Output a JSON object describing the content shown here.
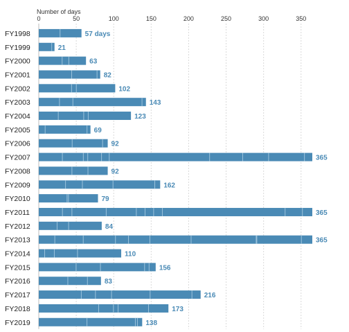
{
  "chart_data": {
    "type": "bar",
    "orientation": "horizontal",
    "xlabel": "Number of days",
    "xlim": [
      0,
      365
    ],
    "xticks": [
      0,
      50,
      100,
      150,
      200,
      250,
      300,
      350
    ],
    "grid": true,
    "categories": [
      "FY1998",
      "FY1999",
      "FY2000",
      "FY2001",
      "FY2002",
      "FY2003",
      "FY2004",
      "FY2005",
      "FY2006",
      "FY2007",
      "FY2008",
      "FY2009",
      "FY2010",
      "FY2011",
      "FY2012",
      "FY2013",
      "FY2014",
      "FY2015",
      "FY2016",
      "FY2017",
      "FY2018",
      "FY2019"
    ],
    "values": [
      57,
      21,
      63,
      82,
      102,
      143,
      123,
      69,
      92,
      365,
      92,
      162,
      79,
      365,
      84,
      365,
      110,
      156,
      83,
      216,
      173,
      138
    ],
    "value_labels": [
      "57 days",
      "21",
      "63",
      "82",
      "102",
      "143",
      "123",
      "69",
      "92",
      "365",
      "92",
      "162",
      "79",
      "365",
      "84",
      "365",
      "110",
      "156",
      "83",
      "216",
      "173",
      "138"
    ],
    "bar_color": "#4a8ab5",
    "label_color": "#4a8ab5"
  }
}
